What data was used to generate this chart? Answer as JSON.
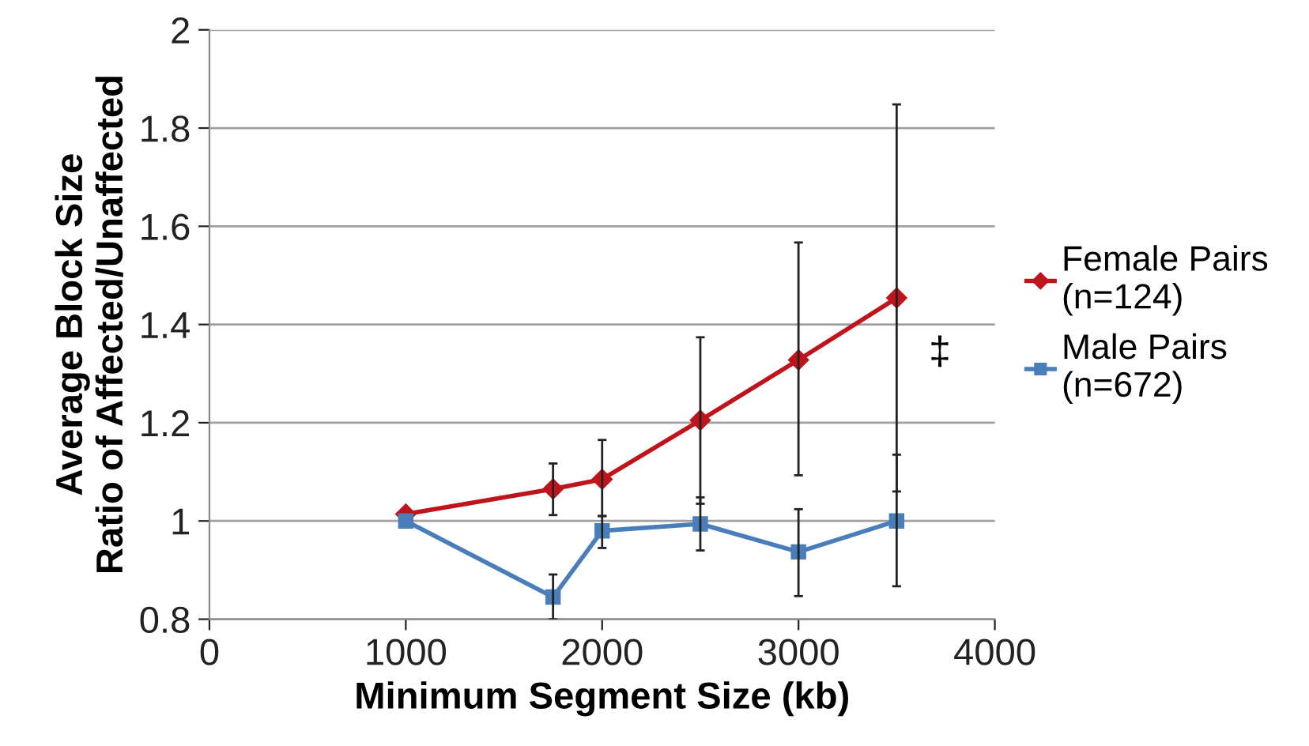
{
  "chart_data": {
    "type": "line",
    "xlabel": "Minimum Segment Size (kb)",
    "ylabel": "Average Block Size\nRatio of Affected/Unaffected",
    "x": [
      1000,
      1750,
      2000,
      2500,
      3000,
      3500
    ],
    "series": [
      {
        "name": "Female Pairs\n(n=124)",
        "color": "#c0141c",
        "marker": "diamond",
        "values": [
          1.014,
          1.065,
          1.085,
          1.205,
          1.328,
          1.454
        ],
        "errors": [
          null,
          [
            1.012,
            1.117
          ],
          [
            1.01,
            1.165
          ],
          [
            1.035,
            1.374
          ],
          [
            1.093,
            1.567
          ],
          [
            1.06,
            1.848
          ]
        ]
      },
      {
        "name": "Male Pairs\n(n=672)",
        "color": "#4a7ebb",
        "marker": "square",
        "values": [
          1.0,
          0.845,
          0.98,
          0.994,
          0.937,
          1.0
        ],
        "errors": [
          null,
          [
            0.8,
            0.891
          ],
          [
            0.945,
            1.01
          ],
          [
            0.94,
            1.048
          ],
          [
            0.847,
            1.024
          ],
          [
            0.867,
            1.135
          ]
        ]
      }
    ],
    "xlim": [
      0,
      4000
    ],
    "xticks": [
      0,
      1000,
      2000,
      3000,
      4000
    ],
    "ylim": [
      0.8,
      2
    ],
    "yticks": [
      0.8,
      1,
      1.2,
      1.4,
      1.6,
      1.8,
      2
    ],
    "grid": "y",
    "legend": "right",
    "line_style": "solid",
    "annotations": [
      "‡"
    ]
  }
}
